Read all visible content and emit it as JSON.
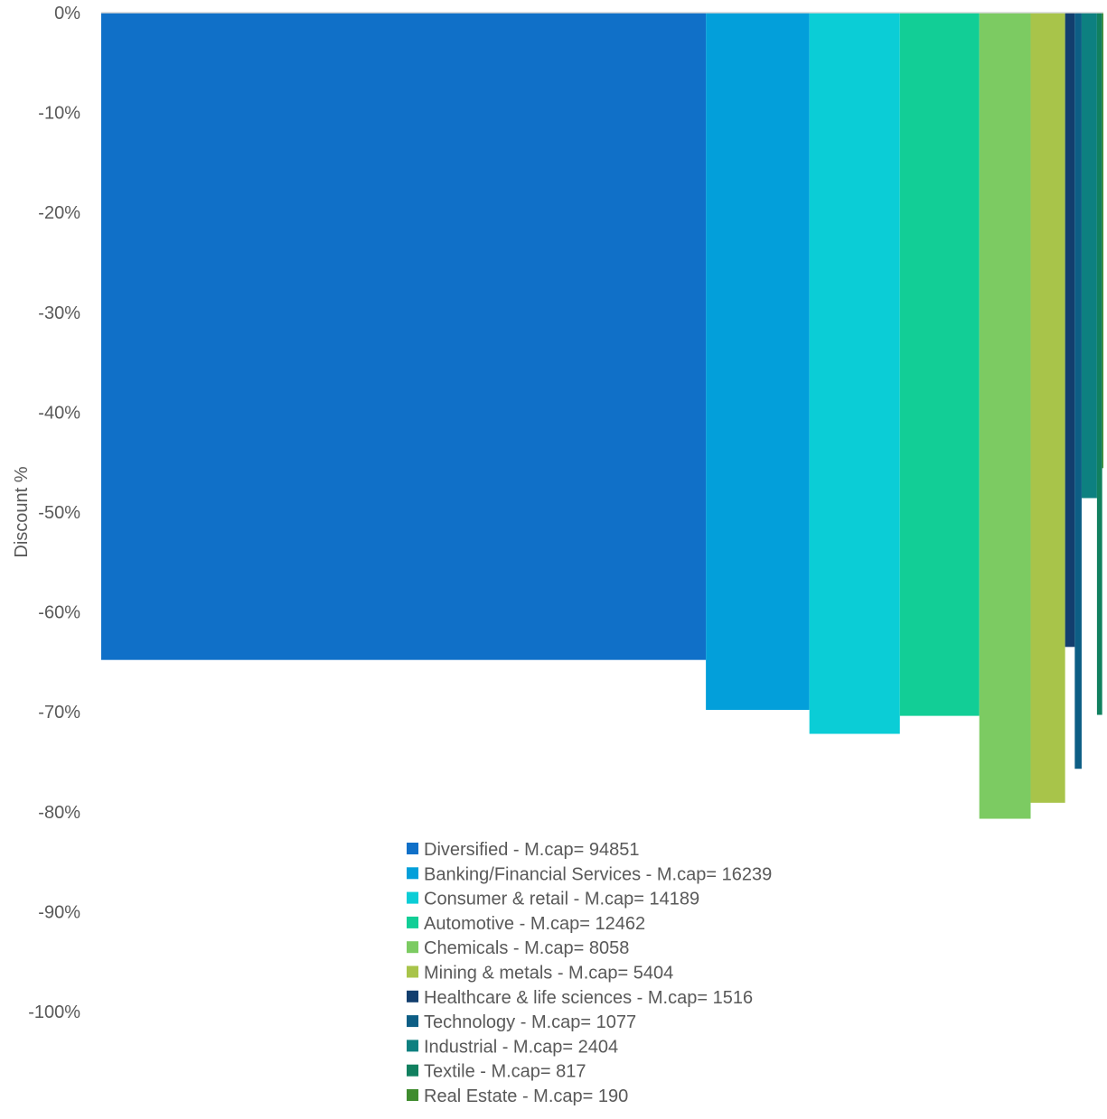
{
  "chart_data": {
    "type": "bar",
    "variant": "variable-width (Marimekko) bars; bar width proportional to market cap",
    "ylabel": "Discount %",
    "ylim": [
      -100,
      0
    ],
    "yticks": [
      0,
      -10,
      -20,
      -30,
      -40,
      -50,
      -60,
      -70,
      -80,
      -90,
      -100
    ],
    "ytick_labels": [
      "0%",
      "-10%",
      "-20%",
      "-30%",
      "-40%",
      "-50%",
      "-60%",
      "-70%",
      "-80%",
      "-90%",
      "-100%"
    ],
    "grid": false,
    "legend_position": "bottom-center (inside plot area)",
    "series": [
      {
        "name": "Diversified - M.cap= 94851",
        "mcap": 94851,
        "value": -64.8,
        "color": "#1070C8"
      },
      {
        "name": "Banking/Financial Services - M.cap= 16239",
        "mcap": 16239,
        "value": -69.8,
        "color": "#039FDA"
      },
      {
        "name": "Consumer & retail - M.cap= 14189",
        "mcap": 14189,
        "value": -72.2,
        "color": "#0BCDD6"
      },
      {
        "name": "Automotive - M.cap= 12462",
        "mcap": 12462,
        "value": -70.4,
        "color": "#12CE96"
      },
      {
        "name": "Chemicals - M.cap= 8058",
        "mcap": 8058,
        "value": -80.7,
        "color": "#7CCB62"
      },
      {
        "name": "Mining & metals - M.cap= 5404",
        "mcap": 5404,
        "value": -79.1,
        "color": "#A8C44A"
      },
      {
        "name": "Healthcare & life sciences - M.cap= 1516",
        "mcap": 1516,
        "value": -63.5,
        "color": "#123E6E"
      },
      {
        "name": "Technology - M.cap= 1077",
        "mcap": 1077,
        "value": -75.7,
        "color": "#0D5E85"
      },
      {
        "name": "Industrial - M.cap= 2404",
        "mcap": 2404,
        "value": -48.6,
        "color": "#0D8080"
      },
      {
        "name": "Textile - M.cap= 817",
        "mcap": 817,
        "value": -70.3,
        "color": "#11805F"
      },
      {
        "name": "Real Estate - M.cap= 190",
        "mcap": 190,
        "value": -45.6,
        "color": "#3F8C2E"
      }
    ]
  },
  "axis_color": "#D9D9D9"
}
